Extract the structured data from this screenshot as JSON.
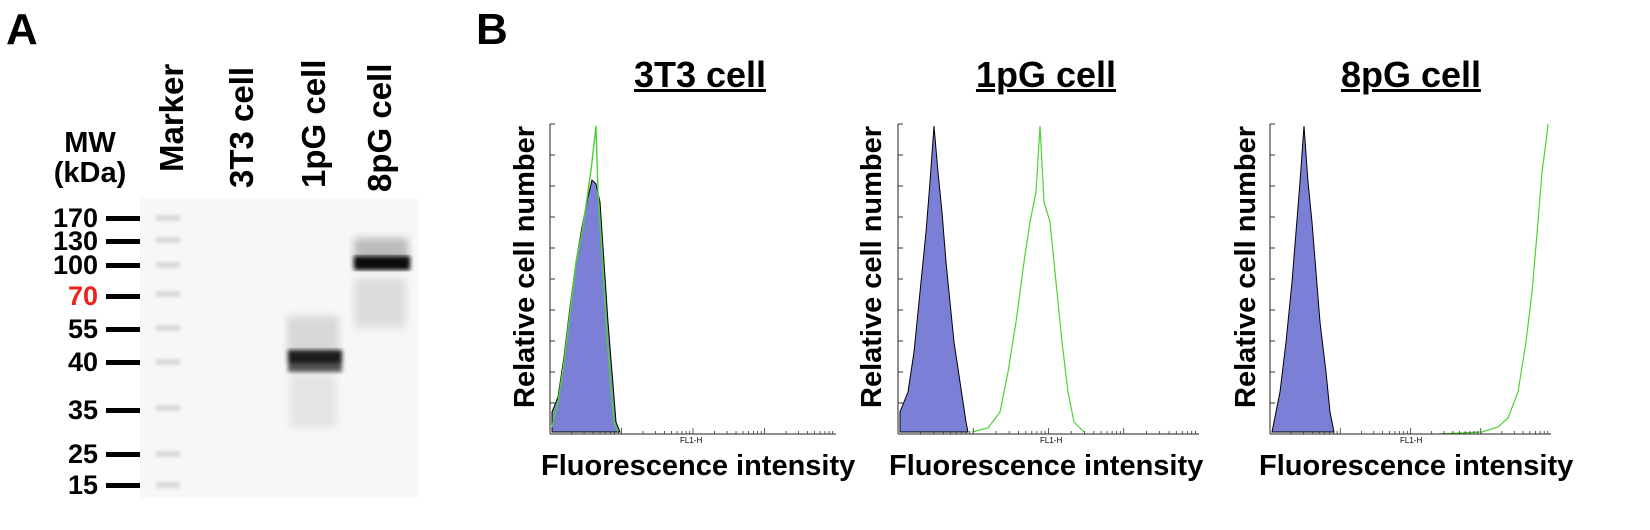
{
  "panel_a": {
    "letter": "A",
    "mw_header_line1": "MW",
    "mw_header_line2": "(kDa)",
    "lanes": [
      "Marker",
      "3T3 cell",
      "1pG cell",
      "8pG cell"
    ],
    "mw_markers": [
      {
        "value": "170",
        "color": "#000000"
      },
      {
        "value": "130",
        "color": "#000000"
      },
      {
        "value": "100",
        "color": "#000000"
      },
      {
        "value": "70",
        "color": "#e8251c"
      },
      {
        "value": "55",
        "color": "#000000"
      },
      {
        "value": "40",
        "color": "#000000"
      },
      {
        "value": "35",
        "color": "#000000"
      },
      {
        "value": "25",
        "color": "#000000"
      },
      {
        "value": "15",
        "color": "#000000"
      }
    ]
  },
  "panel_b": {
    "letter": "B",
    "histograms": [
      {
        "title": "3T3 cell",
        "ylabel": "Relative cell number",
        "xlabel": "Fluorescence intensity",
        "fl_label": "FL1-H"
      },
      {
        "title": "1pG cell",
        "ylabel": "Relative cell number",
        "xlabel": "Fluorescence intensity",
        "fl_label": "FL1-H"
      },
      {
        "title": "8pG cell",
        "ylabel": "Relative cell number",
        "xlabel": "Fluorescence intensity",
        "fl_label": "FL1-H"
      }
    ]
  },
  "colors": {
    "filled_histogram": "#7b7fd6",
    "outline_histogram": "#4fd133",
    "marker_70": "#e8251c"
  }
}
